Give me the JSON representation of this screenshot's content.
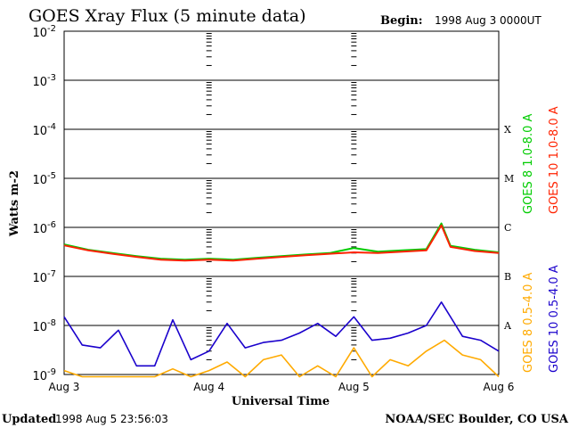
{
  "header": {
    "title": "GOES Xray Flux (5 minute data)",
    "begin_label": "Begin:",
    "begin_value": "1998 Aug 3 0000UT"
  },
  "footer": {
    "updated_label": "Updated",
    "updated_value": "1998 Aug  5 23:56:03",
    "credit": "NOAA/SEC Boulder, CO USA"
  },
  "colors": {
    "goes8_long": "#00cc00",
    "goes10_long": "#ff2200",
    "goes8_short": "#ffaa00",
    "goes10_short": "#1a00cc"
  },
  "chart_data": {
    "type": "line",
    "title": "GOES Xray Flux (5 minute data)",
    "xlabel": "Universal Time",
    "ylabel": "Watts m-2",
    "y_scale": "log",
    "ylim": [
      1e-09,
      0.01
    ],
    "xlim": [
      "1998-08-03T00:00",
      "1998-08-06T00:00"
    ],
    "x_ticks": [
      "Aug 3",
      "Aug 4",
      "Aug 5",
      "Aug 6"
    ],
    "y_tick_labels": [
      {
        "base": "10",
        "exp": "-9",
        "value": 1e-09
      },
      {
        "base": "10",
        "exp": "-8",
        "value": 1e-08
      },
      {
        "base": "10",
        "exp": "-7",
        "value": 1e-07
      },
      {
        "base": "10",
        "exp": "-6",
        "value": 1e-06
      },
      {
        "base": "10",
        "exp": "-5",
        "value": 1e-05
      },
      {
        "base": "10",
        "exp": "-4",
        "value": 0.0001
      },
      {
        "base": "10",
        "exp": "-3",
        "value": 0.001
      },
      {
        "base": "10",
        "exp": "-2",
        "value": 0.01
      }
    ],
    "flare_classes": [
      {
        "label": "A",
        "value": 1e-08
      },
      {
        "label": "B",
        "value": 1e-07
      },
      {
        "label": "C",
        "value": 1e-06
      },
      {
        "label": "M",
        "value": 1e-05
      },
      {
        "label": "X",
        "value": 0.0001
      }
    ],
    "grid": true,
    "legend_placement": "right, vertical",
    "series": [
      {
        "name": "GOES 8 1.0-8.0 A",
        "color": "#00cc00",
        "x": [
          "1998-08-03T00:00",
          "1998-08-03T04:00",
          "1998-08-03T08:00",
          "1998-08-03T12:00",
          "1998-08-03T16:00",
          "1998-08-03T20:00",
          "1998-08-04T00:00",
          "1998-08-04T04:00",
          "1998-08-04T08:00",
          "1998-08-04T12:00",
          "1998-08-04T16:00",
          "1998-08-04T20:00",
          "1998-08-05T00:00",
          "1998-08-05T04:00",
          "1998-08-05T08:00",
          "1998-08-05T12:00",
          "1998-08-05T14:30",
          "1998-08-05T16:00",
          "1998-08-05T20:00",
          "1998-08-06T00:00"
        ],
        "y": [
          4.5e-07,
          3.5e-07,
          3e-07,
          2.6e-07,
          2.3e-07,
          2.2e-07,
          2.3e-07,
          2.2e-07,
          2.4e-07,
          2.6e-07,
          2.8e-07,
          3e-07,
          3.8e-07,
          3.2e-07,
          3.4e-07,
          3.6e-07,
          1.2e-06,
          4.2e-07,
          3.5e-07,
          3.1e-07
        ]
      },
      {
        "name": "GOES 10 1.0-8.0 A",
        "color": "#ff2200",
        "x": [
          "1998-08-03T00:00",
          "1998-08-03T04:00",
          "1998-08-03T08:00",
          "1998-08-03T12:00",
          "1998-08-03T16:00",
          "1998-08-03T20:00",
          "1998-08-04T00:00",
          "1998-08-04T04:00",
          "1998-08-04T08:00",
          "1998-08-04T12:00",
          "1998-08-04T16:00",
          "1998-08-04T20:00",
          "1998-08-05T00:00",
          "1998-08-05T04:00",
          "1998-08-05T08:00",
          "1998-08-05T12:00",
          "1998-08-05T14:30",
          "1998-08-05T16:00",
          "1998-08-05T20:00",
          "1998-08-06T00:00"
        ],
        "y": [
          4.3e-07,
          3.4e-07,
          2.9e-07,
          2.5e-07,
          2.2e-07,
          2.1e-07,
          2.2e-07,
          2.1e-07,
          2.3e-07,
          2.5e-07,
          2.7e-07,
          2.9e-07,
          3.1e-07,
          3e-07,
          3.2e-07,
          3.4e-07,
          1.1e-06,
          4e-07,
          3.3e-07,
          3e-07
        ]
      },
      {
        "name": "GOES 8 0.5-4.0 A",
        "color": "#ffaa00",
        "x": [
          "1998-08-03T00:00",
          "1998-08-03T03:00",
          "1998-08-03T06:00",
          "1998-08-03T09:00",
          "1998-08-03T12:00",
          "1998-08-03T15:00",
          "1998-08-03T18:00",
          "1998-08-03T21:00",
          "1998-08-04T00:00",
          "1998-08-04T03:00",
          "1998-08-04T06:00",
          "1998-08-04T09:00",
          "1998-08-04T12:00",
          "1998-08-04T15:00",
          "1998-08-04T18:00",
          "1998-08-04T21:00",
          "1998-08-05T00:00",
          "1998-08-05T03:00",
          "1998-08-05T06:00",
          "1998-08-05T09:00",
          "1998-08-05T12:00",
          "1998-08-05T15:00",
          "1998-08-05T18:00",
          "1998-08-05T21:00",
          "1998-08-06T00:00"
        ],
        "y": [
          1.2e-09,
          9e-10,
          9e-10,
          9e-10,
          9e-10,
          9e-10,
          1.3e-09,
          9e-10,
          1.2e-09,
          1.8e-09,
          9e-10,
          2e-09,
          2.5e-09,
          9e-10,
          1.5e-09,
          9e-10,
          3.5e-09,
          9e-10,
          2e-09,
          1.5e-09,
          3e-09,
          5e-09,
          2.5e-09,
          2e-09,
          9e-10
        ]
      },
      {
        "name": "GOES 10 0.5-4.0 A",
        "color": "#1a00cc",
        "x": [
          "1998-08-03T00:00",
          "1998-08-03T03:00",
          "1998-08-03T06:00",
          "1998-08-03T09:00",
          "1998-08-03T12:00",
          "1998-08-03T15:00",
          "1998-08-03T18:00",
          "1998-08-03T21:00",
          "1998-08-04T00:00",
          "1998-08-04T03:00",
          "1998-08-04T06:00",
          "1998-08-04T09:00",
          "1998-08-04T12:00",
          "1998-08-04T15:00",
          "1998-08-04T18:00",
          "1998-08-04T21:00",
          "1998-08-05T00:00",
          "1998-08-05T03:00",
          "1998-08-05T06:00",
          "1998-08-05T09:00",
          "1998-08-05T12:00",
          "1998-08-05T14:30",
          "1998-08-05T18:00",
          "1998-08-05T21:00",
          "1998-08-06T00:00"
        ],
        "y": [
          1.5e-08,
          4e-09,
          3.5e-09,
          8e-09,
          1.5e-09,
          1.5e-09,
          1.3e-08,
          2e-09,
          3e-09,
          1.1e-08,
          3.5e-09,
          4.5e-09,
          5e-09,
          7e-09,
          1.1e-08,
          6e-09,
          1.5e-08,
          5e-09,
          5.5e-09,
          7e-09,
          1e-08,
          3e-08,
          6e-09,
          5e-09,
          3e-09
        ]
      }
    ]
  }
}
